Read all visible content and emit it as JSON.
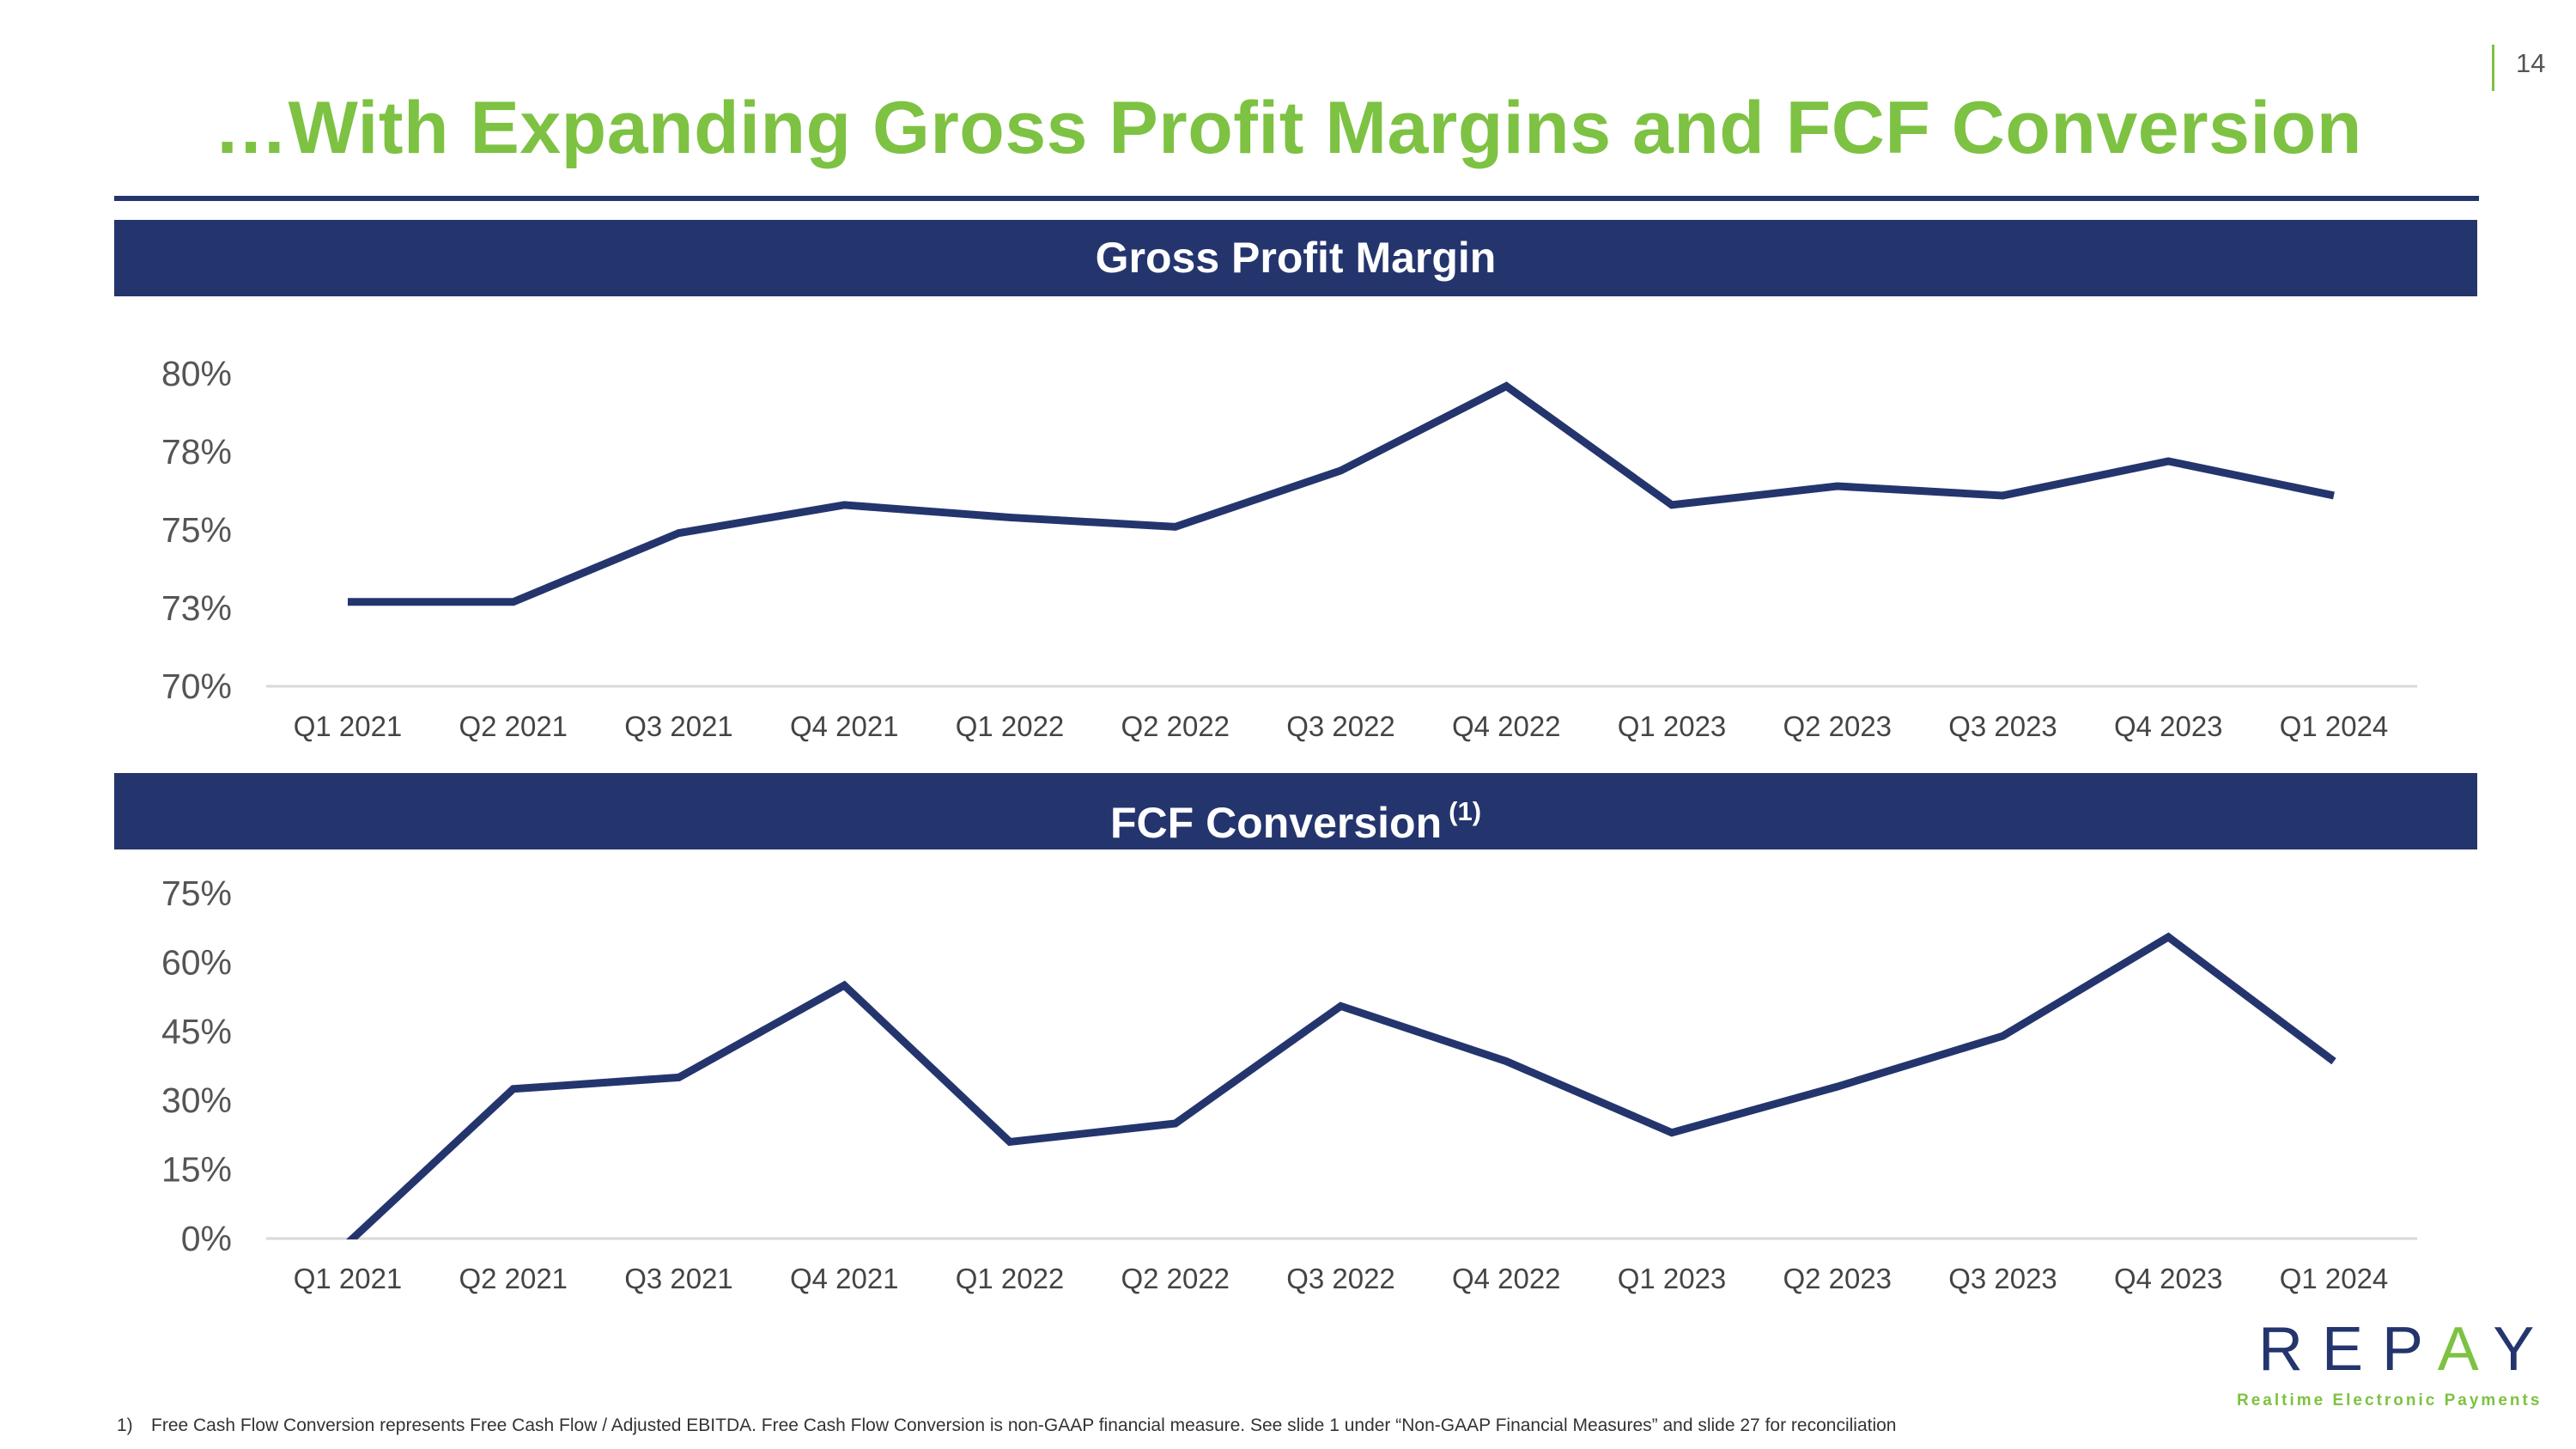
{
  "page_number": "14",
  "title": "…With Expanding Gross Profit Margins and FCF Conversion",
  "colors": {
    "brand_green": "#7dc242",
    "brand_navy": "#24356e",
    "axis_line": "#d9d9d9"
  },
  "chart_data": [
    {
      "type": "line",
      "title": "Gross Profit Margin",
      "categories": [
        "Q1 2021",
        "Q2 2021",
        "Q3 2021",
        "Q4 2021",
        "Q1 2022",
        "Q2 2022",
        "Q3 2022",
        "Q4 2022",
        "Q1 2023",
        "Q2 2023",
        "Q3 2023",
        "Q4 2023",
        "Q1 2024"
      ],
      "values": [
        72.7,
        72.7,
        74.9,
        75.8,
        75.4,
        75.1,
        76.9,
        79.6,
        75.8,
        76.4,
        76.1,
        77.2,
        76.1
      ],
      "ylim": [
        70,
        80
      ],
      "yticks": [
        70,
        72.5,
        75,
        77.5,
        80
      ],
      "ytick_labels": [
        "70%",
        "73%",
        "75%",
        "78%",
        "80%"
      ],
      "xlabel": "",
      "ylabel": "",
      "grid": false,
      "legend": "none"
    },
    {
      "type": "line",
      "title": "FCF Conversion",
      "title_superscript": "(1)",
      "categories": [
        "Q1 2021",
        "Q2 2021",
        "Q3 2021",
        "Q4 2021",
        "Q1 2022",
        "Q2 2022",
        "Q3 2022",
        "Q4 2022",
        "Q1 2023",
        "Q2 2023",
        "Q3 2023",
        "Q4 2023",
        "Q1 2024"
      ],
      "values": [
        -1,
        32.5,
        35,
        55,
        21,
        25,
        50.5,
        38.5,
        23,
        33,
        44,
        65.5,
        38.5
      ],
      "ylim": [
        0,
        75
      ],
      "yticks": [
        0,
        15,
        30,
        45,
        60,
        75
      ],
      "ytick_labels": [
        "0%",
        "15%",
        "30%",
        "45%",
        "60%",
        "75%"
      ],
      "xlabel": "",
      "ylabel": "",
      "grid": false,
      "legend": "none"
    }
  ],
  "logo": {
    "wordmark_pre": "REP",
    "wordmark_accent": "A",
    "wordmark_post": "Y",
    "tagline": "Realtime Electronic Payments"
  },
  "footnote": {
    "marker": "1)",
    "text": "Free Cash Flow Conversion represents Free Cash Flow / Adjusted EBITDA. Free Cash Flow Conversion is non-GAAP financial measure. See slide 1 under “Non-GAAP Financial Measures” and slide 27 for reconciliation"
  }
}
